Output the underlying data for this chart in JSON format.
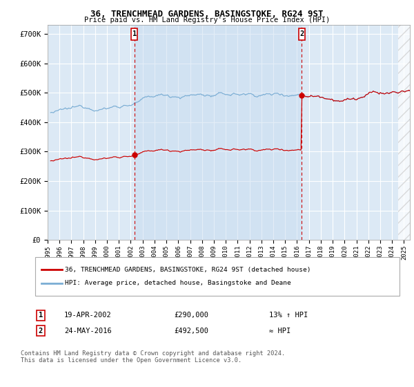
{
  "title1": "36, TRENCHMEAD GARDENS, BASINGSTOKE, RG24 9ST",
  "title2": "Price paid vs. HM Land Registry's House Price Index (HPI)",
  "ylabel_ticks": [
    "£0",
    "£100K",
    "£200K",
    "£300K",
    "£400K",
    "£500K",
    "£600K",
    "£700K"
  ],
  "ytick_vals": [
    0,
    100000,
    200000,
    300000,
    400000,
    500000,
    600000,
    700000
  ],
  "ylim": [
    0,
    730000
  ],
  "xlim_start": 1995.25,
  "xlim_end": 2025.5,
  "red_color": "#cc0000",
  "blue_color": "#7aadd4",
  "background_color": "#dce9f5",
  "grid_color": "#ffffff",
  "sale1_year": 2002.3,
  "sale1_price_val": 290000,
  "sale1_date": "19-APR-2002",
  "sale1_price": "£290,000",
  "sale1_hpi": "13% ↑ HPI",
  "sale2_year": 2016.4,
  "sale2_price_val": 492500,
  "sale2_date": "24-MAY-2016",
  "sale2_price": "£492,500",
  "sale2_hpi": "≈ HPI",
  "legend_line1": "36, TRENCHMEAD GARDENS, BASINGSTOKE, RG24 9ST (detached house)",
  "legend_line2": "HPI: Average price, detached house, Basingstoke and Deane",
  "footnote": "Contains HM Land Registry data © Crown copyright and database right 2024.\nThis data is licensed under the Open Government Licence v3.0.",
  "hatch_start": 2024.5
}
